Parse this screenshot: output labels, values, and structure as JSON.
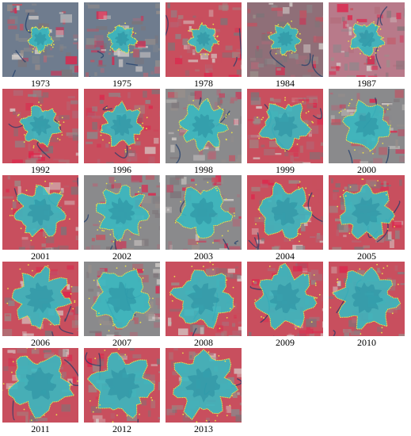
{
  "figure": {
    "panels": [
      {
        "year": "1973",
        "urban_level": 0.18,
        "tone": "grey-blue"
      },
      {
        "year": "1975",
        "urban_level": 0.22,
        "tone": "grey-blue"
      },
      {
        "year": "1978",
        "urban_level": 0.24,
        "tone": "red"
      },
      {
        "year": "1984",
        "urban_level": 0.27,
        "tone": "grey-red"
      },
      {
        "year": "1987",
        "urban_level": 0.32,
        "tone": "pink"
      },
      {
        "year": "1992",
        "urban_level": 0.42,
        "tone": "red"
      },
      {
        "year": "1996",
        "urban_level": 0.48,
        "tone": "red"
      },
      {
        "year": "1998",
        "urban_level": 0.55,
        "tone": "grey"
      },
      {
        "year": "1999",
        "urban_level": 0.56,
        "tone": "red"
      },
      {
        "year": "2000",
        "urban_level": 0.57,
        "tone": "grey"
      },
      {
        "year": "2001",
        "urban_level": 0.6,
        "tone": "red"
      },
      {
        "year": "2002",
        "urban_level": 0.62,
        "tone": "grey"
      },
      {
        "year": "2003",
        "urban_level": 0.63,
        "tone": "grey"
      },
      {
        "year": "2004",
        "urban_level": 0.66,
        "tone": "red"
      },
      {
        "year": "2005",
        "urban_level": 0.68,
        "tone": "red"
      },
      {
        "year": "2006",
        "urban_level": 0.72,
        "tone": "red"
      },
      {
        "year": "2007",
        "urban_level": 0.73,
        "tone": "grey"
      },
      {
        "year": "2008",
        "urban_level": 0.75,
        "tone": "red"
      },
      {
        "year": "2009",
        "urban_level": 0.77,
        "tone": "red"
      },
      {
        "year": "2010",
        "urban_level": 0.78,
        "tone": "red"
      },
      {
        "year": "2011",
        "urban_level": 0.8,
        "tone": "red"
      },
      {
        "year": "2012",
        "urban_level": 0.82,
        "tone": "red"
      },
      {
        "year": "2013",
        "urban_level": 0.84,
        "tone": "red"
      }
    ],
    "palette": {
      "urban": "#38b8c0",
      "urban_core": "#2a8ea0",
      "vegetation": "#c84f5e",
      "vegetation_bright": "#e0224a",
      "soil": "#9a8f8a",
      "grey_land": "#8a8a8c",
      "boundary": "#e8e04a",
      "water": "#1d3a6a"
    }
  }
}
